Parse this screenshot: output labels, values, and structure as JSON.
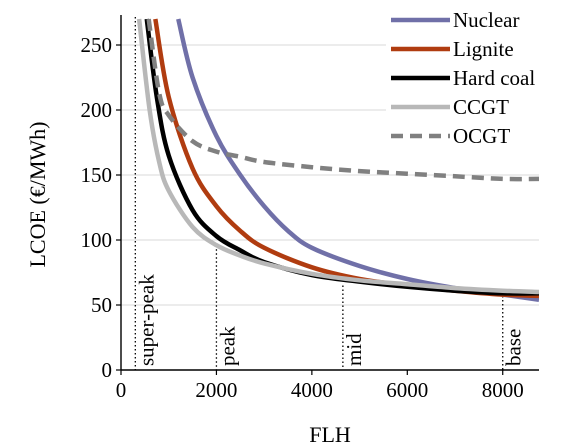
{
  "chart_data": {
    "type": "line",
    "title": "",
    "xlabel": "FLH",
    "ylabel": "LCOE (€/MWh)",
    "xlim": [
      0,
      8760
    ],
    "ylim": [
      0,
      270
    ],
    "x_ticks": [
      0,
      2000,
      4000,
      6000,
      8000
    ],
    "y_ticks": [
      0,
      50,
      100,
      150,
      200,
      250
    ],
    "x_tick_labels": [
      "0",
      "2000",
      "4000",
      "6000",
      "8000"
    ],
    "y_tick_labels": [
      "0",
      "50",
      "100",
      "150",
      "200",
      "250"
    ],
    "grid": "horizontal",
    "legend_position": "top-right",
    "series": [
      {
        "name": "Nuclear",
        "color": "#7070a8",
        "dash": "solid",
        "points": [
          [
            1200,
            270
          ],
          [
            1500,
            225
          ],
          [
            2000,
            180
          ],
          [
            2500,
            150
          ],
          [
            3000,
            126
          ],
          [
            3500,
            107
          ],
          [
            4000,
            94
          ],
          [
            5000,
            80
          ],
          [
            6000,
            70
          ],
          [
            7000,
            63
          ],
          [
            8000,
            58
          ],
          [
            8760,
            54
          ]
        ]
      },
      {
        "name": "Lignite",
        "color": "#b03c10",
        "dash": "solid",
        "points": [
          [
            720,
            270
          ],
          [
            1000,
            210
          ],
          [
            1500,
            155
          ],
          [
            2000,
            126
          ],
          [
            2500,
            107
          ],
          [
            3000,
            94
          ],
          [
            4000,
            79
          ],
          [
            5000,
            70
          ],
          [
            6000,
            65
          ],
          [
            7000,
            61
          ],
          [
            8000,
            58
          ],
          [
            8760,
            57
          ]
        ]
      },
      {
        "name": "Hard coal",
        "color": "#000000",
        "dash": "solid",
        "points": [
          [
            540,
            270
          ],
          [
            750,
            210
          ],
          [
            1000,
            165
          ],
          [
            1500,
            123
          ],
          [
            2000,
            103
          ],
          [
            2500,
            92
          ],
          [
            3000,
            83
          ],
          [
            4000,
            73
          ],
          [
            5000,
            68
          ],
          [
            6000,
            64
          ],
          [
            7000,
            61
          ],
          [
            8000,
            59
          ],
          [
            8760,
            59
          ]
        ]
      },
      {
        "name": "CCGT",
        "color": "#b8b8b8",
        "dash": "solid",
        "points": [
          [
            380,
            270
          ],
          [
            600,
            200
          ],
          [
            800,
            160
          ],
          [
            1000,
            138
          ],
          [
            1500,
            110
          ],
          [
            2000,
            96
          ],
          [
            2500,
            88
          ],
          [
            3000,
            82
          ],
          [
            4000,
            74
          ],
          [
            5000,
            69
          ],
          [
            6000,
            66
          ],
          [
            7000,
            63
          ],
          [
            8000,
            61
          ],
          [
            8760,
            60
          ]
        ]
      },
      {
        "name": "OCGT",
        "color": "#808080",
        "dash": "dashed",
        "points": [
          [
            580,
            270
          ],
          [
            800,
            213
          ],
          [
            1000,
            196
          ],
          [
            1500,
            176
          ],
          [
            2000,
            168
          ],
          [
            2500,
            164
          ],
          [
            3000,
            160
          ],
          [
            4000,
            156
          ],
          [
            5000,
            153
          ],
          [
            6000,
            151
          ],
          [
            7000,
            149
          ],
          [
            8000,
            147
          ],
          [
            8760,
            147
          ]
        ]
      }
    ],
    "regions": [
      {
        "label": "super-peak",
        "x": 300
      },
      {
        "label": "peak",
        "x": 2000
      },
      {
        "label": "mid",
        "x": 4650
      },
      {
        "label": "base",
        "x": 8000
      }
    ]
  }
}
